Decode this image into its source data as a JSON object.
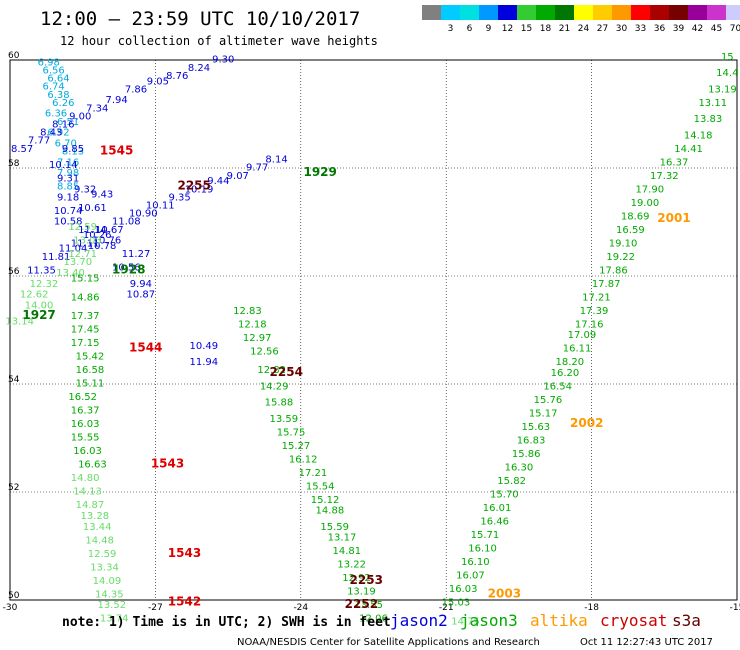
{
  "header": {
    "title": "12:00 – 23:59 UTC 10/10/2017",
    "subtitle": "12 hour collection of altimeter wave heights"
  },
  "color_scale": {
    "bins": [
      {
        "color": "#808080",
        "label": ""
      },
      {
        "color": "#00ccff",
        "label": "3"
      },
      {
        "color": "#00e0e0",
        "label": "6"
      },
      {
        "color": "#0099ff",
        "label": "9"
      },
      {
        "color": "#0000dd",
        "label": "12"
      },
      {
        "color": "#33cc33",
        "label": "15"
      },
      {
        "color": "#00aa00",
        "label": "18"
      },
      {
        "color": "#007700",
        "label": "21"
      },
      {
        "color": "#ffff00",
        "label": "24"
      },
      {
        "color": "#ffcc00",
        "label": "27"
      },
      {
        "color": "#ff9900",
        "label": "30"
      },
      {
        "color": "#ff0000",
        "label": "33"
      },
      {
        "color": "#aa0000",
        "label": "36"
      },
      {
        "color": "#770000",
        "label": "39"
      },
      {
        "color": "#990099",
        "label": "42"
      },
      {
        "color": "#cc33cc",
        "label": "45"
      },
      {
        "color": "#ccccff",
        "label": "70"
      },
      {
        "color": "#000000",
        "label": "(ft)"
      }
    ]
  },
  "chart_data": {
    "type": "scatter",
    "title": "12:00 – 23:59 UTC 10/10/2017",
    "subtitle": "12 hour collection of altimeter wave heights",
    "xlim": [
      -30,
      -15
    ],
    "ylim": [
      50,
      60
    ],
    "x_ticks": [
      "-30",
      "-27",
      "-24",
      "-21",
      "-18",
      "-15"
    ],
    "y_ticks": [
      "50",
      "52",
      "54",
      "56",
      "58",
      "60"
    ],
    "grid": true,
    "series": [
      {
        "name": "jason2",
        "color": "#0000dd",
        "points": [
          [
            -25.6,
            59.95,
            "9.30"
          ],
          [
            -26.1,
            59.8,
            "8.24"
          ],
          [
            -26.55,
            59.65,
            "8.76"
          ],
          [
            -26.95,
            59.55,
            "9.05"
          ],
          [
            -27.4,
            59.4,
            "7.86"
          ],
          [
            -27.8,
            59.2,
            "7.94"
          ],
          [
            -28.2,
            59.05,
            "7.34"
          ],
          [
            -28.55,
            58.9,
            "9.00"
          ],
          [
            -28.9,
            58.75,
            "8.16"
          ],
          [
            -29.15,
            58.6,
            "8.43"
          ],
          [
            -29.4,
            58.45,
            "7.77"
          ],
          [
            -29.75,
            58.3,
            "8.57"
          ],
          [
            -24.5,
            58.1,
            "8.14"
          ],
          [
            -24.9,
            57.95,
            "9.77"
          ],
          [
            -25.3,
            57.8,
            "9.07"
          ],
          [
            -25.7,
            57.7,
            "9.44"
          ],
          [
            -26.1,
            57.55,
            "10.19"
          ],
          [
            -26.5,
            57.4,
            "9.35"
          ],
          [
            -26.9,
            57.25,
            "10.11"
          ],
          [
            -27.25,
            57.1,
            "10.90"
          ],
          [
            -27.6,
            56.95,
            "11.08"
          ],
          [
            -27.95,
            56.8,
            "10.67"
          ],
          [
            -28.2,
            56.7,
            "10.26"
          ],
          [
            -28.45,
            56.55,
            "11.11"
          ],
          [
            -28.7,
            56.45,
            "11.04"
          ],
          [
            -29.05,
            56.3,
            "11.81"
          ],
          [
            -29.35,
            56.05,
            "11.35"
          ],
          [
            -28.7,
            58.3,
            "9.85"
          ],
          [
            -28.9,
            58.0,
            "10.14"
          ],
          [
            -28.8,
            57.75,
            "9.31"
          ],
          [
            -28.45,
            57.55,
            "9.32"
          ],
          [
            -28.8,
            57.4,
            "9.18"
          ],
          [
            -28.1,
            57.45,
            "9.43"
          ],
          [
            -28.3,
            57.2,
            "10.61"
          ],
          [
            -28.8,
            57.15,
            "10.74"
          ],
          [
            -28.8,
            56.95,
            "10.58"
          ],
          [
            -28.3,
            56.8,
            "11.14"
          ],
          [
            -28.0,
            56.6,
            "10.76"
          ],
          [
            -28.1,
            56.5,
            "10.78"
          ],
          [
            -27.4,
            56.35,
            "11.27"
          ],
          [
            -27.6,
            56.1,
            "10.56"
          ],
          [
            -27.3,
            55.8,
            "9.94"
          ],
          [
            -27.3,
            55.6,
            "10.87"
          ],
          [
            -26.0,
            54.65,
            "10.49"
          ],
          [
            -26.0,
            54.35,
            "11.94"
          ]
        ]
      },
      {
        "name": "jason3",
        "color": "#00aa00",
        "points": [
          [
            -15.2,
            60.0,
            "15"
          ],
          [
            -15.2,
            59.7,
            "14.4"
          ],
          [
            -15.3,
            59.4,
            "13.19"
          ],
          [
            -15.5,
            59.15,
            "13.11"
          ],
          [
            -15.6,
            58.85,
            "13.83"
          ],
          [
            -15.8,
            58.55,
            "14.18"
          ],
          [
            -16.0,
            58.3,
            "14.41"
          ],
          [
            -16.3,
            58.05,
            "16.37"
          ],
          [
            -16.5,
            57.8,
            "17.32"
          ],
          [
            -16.8,
            57.55,
            "17.90"
          ],
          [
            -16.9,
            57.3,
            "19.00"
          ],
          [
            -17.1,
            57.05,
            "18.69"
          ],
          [
            -17.2,
            56.8,
            "16.59"
          ],
          [
            -17.35,
            56.55,
            "19.10"
          ],
          [
            -17.4,
            56.3,
            "19.22"
          ],
          [
            -17.55,
            56.05,
            "17.86"
          ],
          [
            -17.7,
            55.8,
            "17.87"
          ],
          [
            -17.9,
            55.55,
            "17.21"
          ],
          [
            -17.95,
            55.3,
            "17.39"
          ],
          [
            -18.05,
            55.05,
            "17.16"
          ],
          [
            -18.2,
            54.85,
            "17.09"
          ],
          [
            -18.3,
            54.6,
            "16.11"
          ],
          [
            -18.45,
            54.35,
            "18.20"
          ],
          [
            -18.55,
            54.15,
            "16.20"
          ],
          [
            -18.7,
            53.9,
            "16.54"
          ],
          [
            -18.9,
            53.65,
            "15.76"
          ],
          [
            -19.0,
            53.4,
            "15.17"
          ],
          [
            -19.15,
            53.15,
            "15.63"
          ],
          [
            -19.25,
            52.9,
            "16.83"
          ],
          [
            -19.35,
            52.65,
            "15.86"
          ],
          [
            -19.5,
            52.4,
            "16.30"
          ],
          [
            -19.65,
            52.15,
            "15.82"
          ],
          [
            -19.8,
            51.9,
            "15.70"
          ],
          [
            -19.95,
            51.65,
            "16.01"
          ],
          [
            -20.0,
            51.4,
            "16.46"
          ],
          [
            -20.2,
            51.15,
            "15.71"
          ],
          [
            -20.25,
            50.9,
            "16.10"
          ],
          [
            -20.4,
            50.65,
            "16.10"
          ],
          [
            -20.5,
            50.4,
            "16.07"
          ],
          [
            -20.65,
            50.15,
            "16.03"
          ],
          [
            -20.8,
            49.9,
            "15.03"
          ],
          [
            -28.45,
            55.9,
            "15.15"
          ],
          [
            -28.45,
            55.55,
            "14.86"
          ],
          [
            -28.45,
            55.2,
            "17.37"
          ],
          [
            -28.45,
            54.95,
            "17.45"
          ],
          [
            -28.45,
            54.7,
            "17.15"
          ],
          [
            -28.35,
            54.45,
            "15.42"
          ],
          [
            -28.35,
            54.2,
            "16.58"
          ],
          [
            -28.35,
            53.95,
            "15.11"
          ],
          [
            -28.5,
            53.7,
            "16.52"
          ],
          [
            -28.45,
            53.45,
            "16.37"
          ],
          [
            -28.45,
            53.2,
            "16.03"
          ],
          [
            -28.45,
            52.95,
            "15.55"
          ],
          [
            -28.4,
            52.7,
            "16.03"
          ],
          [
            -28.3,
            52.45,
            "16.63"
          ],
          [
            -25.1,
            55.3,
            "12.83"
          ],
          [
            -25.0,
            55.05,
            "12.18"
          ],
          [
            -24.9,
            54.8,
            "12.97"
          ],
          [
            -24.75,
            54.55,
            "12.56"
          ],
          [
            -24.6,
            54.2,
            "12.82"
          ],
          [
            -24.55,
            53.9,
            "14.29"
          ],
          [
            -24.45,
            53.6,
            "15.88"
          ],
          [
            -24.35,
            53.3,
            "13.59"
          ],
          [
            -24.2,
            53.05,
            "15.75"
          ],
          [
            -24.1,
            52.8,
            "15.27"
          ],
          [
            -23.95,
            52.55,
            "16.12"
          ],
          [
            -23.75,
            52.3,
            "17.21"
          ],
          [
            -23.6,
            52.05,
            "15.54"
          ],
          [
            -23.5,
            51.8,
            "15.12"
          ],
          [
            -23.4,
            51.6,
            "14.88"
          ],
          [
            -23.3,
            51.3,
            "15.59"
          ],
          [
            -23.15,
            51.1,
            "13.17"
          ],
          [
            -23.05,
            50.85,
            "14.81"
          ],
          [
            -22.95,
            50.6,
            "13.22"
          ],
          [
            -22.85,
            50.35,
            "12.92"
          ],
          [
            -22.75,
            50.1,
            "13.19"
          ],
          [
            -22.6,
            49.85,
            "13.55"
          ],
          [
            -22.5,
            49.6,
            "12.06"
          ]
        ]
      },
      {
        "name": "altika",
        "color": "#ff9900",
        "points": []
      },
      {
        "name": "cryosat",
        "color": "#cc0000",
        "points": []
      },
      {
        "name": "s3a",
        "color": "#660000",
        "points": []
      }
    ],
    "cyan_points": [
      [
        -29.2,
        59.9,
        "6.98"
      ],
      [
        -29.1,
        59.75,
        "6.56"
      ],
      [
        -29.0,
        59.6,
        "6.64"
      ],
      [
        -29.1,
        59.45,
        "6.74"
      ],
      [
        -29.0,
        59.3,
        "6.38"
      ],
      [
        -28.9,
        59.15,
        "6.26"
      ],
      [
        -29.05,
        58.95,
        "6.36"
      ],
      [
        -28.8,
        58.8,
        "6.51"
      ],
      [
        -29.0,
        58.6,
        "6.92"
      ],
      [
        -28.85,
        58.4,
        "6.70"
      ],
      [
        -28.7,
        58.25,
        "8.13"
      ],
      [
        -28.8,
        58.05,
        "7.16"
      ],
      [
        -28.8,
        57.85,
        "7.98"
      ],
      [
        -28.8,
        57.6,
        "8.85"
      ]
    ],
    "light_green_points": [
      [
        -29.8,
        55.1,
        "13.14"
      ],
      [
        -29.4,
        55.4,
        "14.00"
      ],
      [
        -29.5,
        55.6,
        "12.62"
      ],
      [
        -29.3,
        55.8,
        "12.32"
      ],
      [
        -28.75,
        56.0,
        "13.40"
      ],
      [
        -28.6,
        56.2,
        "13.70"
      ],
      [
        -28.5,
        56.35,
        "12.71"
      ],
      [
        -28.4,
        56.6,
        "13.03"
      ],
      [
        -28.5,
        56.85,
        "12.59"
      ],
      [
        -28.45,
        52.2,
        "14.80"
      ],
      [
        -28.4,
        51.95,
        "14.13"
      ],
      [
        -28.35,
        51.7,
        "14.87"
      ],
      [
        -28.25,
        51.5,
        "13.28"
      ],
      [
        -28.2,
        51.3,
        "13.44"
      ],
      [
        -28.15,
        51.05,
        "14.48"
      ],
      [
        -28.1,
        50.8,
        "12.59"
      ],
      [
        -28.05,
        50.55,
        "13.34"
      ],
      [
        -28.0,
        50.3,
        "14.09"
      ],
      [
        -27.95,
        50.05,
        "14.35"
      ],
      [
        -27.9,
        49.85,
        "13.52"
      ],
      [
        -27.85,
        49.6,
        "13.74"
      ],
      [
        -20.6,
        49.55,
        "14.75"
      ]
    ],
    "time_labels": [
      {
        "text": "1545",
        "x": -27.8,
        "y": 58.25,
        "color": "#dd0000"
      },
      {
        "text": "1929",
        "x": -23.6,
        "y": 57.85,
        "color": "#007700"
      },
      {
        "text": "2255",
        "x": -26.2,
        "y": 57.6,
        "color": "#660000"
      },
      {
        "text": "2001",
        "x": -16.3,
        "y": 57.0,
        "color": "#ff9900"
      },
      {
        "text": "1928",
        "x": -27.55,
        "y": 56.05,
        "color": "#007700"
      },
      {
        "text": "1927",
        "x": -29.4,
        "y": 55.2,
        "color": "#007700"
      },
      {
        "text": "1544",
        "x": -27.2,
        "y": 54.6,
        "color": "#dd0000"
      },
      {
        "text": "2254",
        "x": -24.3,
        "y": 54.15,
        "color": "#660000"
      },
      {
        "text": "2002",
        "x": -18.1,
        "y": 53.2,
        "color": "#ff9900"
      },
      {
        "text": "1543",
        "x": -26.75,
        "y": 52.45,
        "color": "#dd0000"
      },
      {
        "text": "1543",
        "x": -26.4,
        "y": 50.8,
        "color": "#dd0000"
      },
      {
        "text": "2253",
        "x": -22.65,
        "y": 50.3,
        "color": "#660000"
      },
      {
        "text": "2003",
        "x": -19.8,
        "y": 50.05,
        "color": "#ff9900"
      },
      {
        "text": "1542",
        "x": -26.4,
        "y": 49.9,
        "color": "#dd0000"
      },
      {
        "text": "2252",
        "x": -22.75,
        "y": 49.85,
        "color": "#660000"
      }
    ]
  },
  "note": {
    "text": "note: 1) Time is in UTC; 2) SWH is in feet",
    "sats": [
      {
        "name": "jason2",
        "color": "#0000dd"
      },
      {
        "name": "jason3",
        "color": "#00aa00"
      },
      {
        "name": "altika",
        "color": "#ff9900"
      },
      {
        "name": "cryosat",
        "color": "#cc0000"
      },
      {
        "name": "s3a",
        "color": "#660000"
      }
    ]
  },
  "footer": {
    "credit": "NOAA/NESDIS Center for Satellite Applications and Research",
    "timestamp": "Oct 11 12:27:43 UTC 2017"
  }
}
